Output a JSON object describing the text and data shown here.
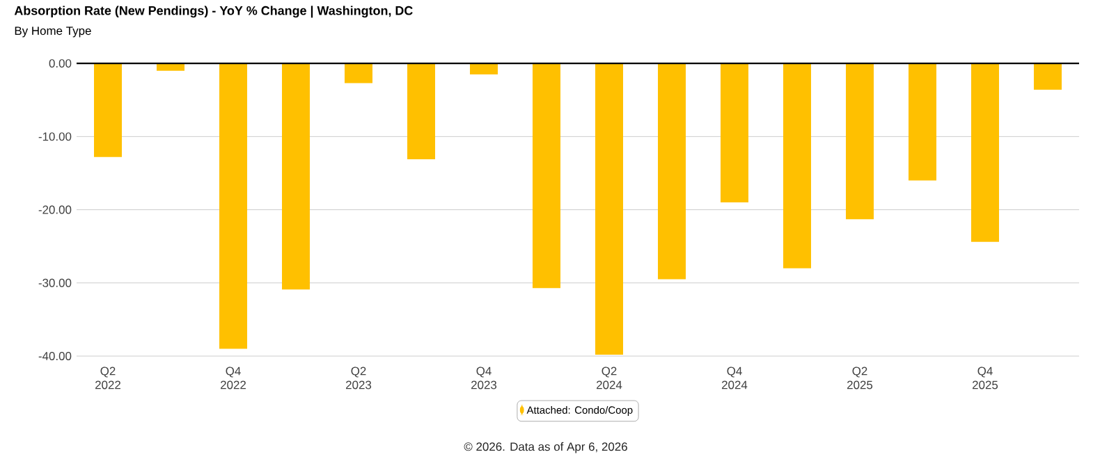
{
  "chart_data": {
    "type": "bar",
    "title": "Absorption Rate (New Pendings) - YoY % Change | Washington, DC",
    "subtitle": "By Home Type",
    "categories": [
      "Q2 2022",
      null,
      "Q4 2022",
      null,
      "Q2 2023",
      null,
      "Q4 2023",
      null,
      "Q2 2024",
      null,
      "Q4 2024",
      null,
      "Q2 2025",
      null,
      "Q4 2025",
      null
    ],
    "series": [
      {
        "name": "Attached: Condo/Coop",
        "color": "#ffc000",
        "values": [
          -12.8,
          -1.0,
          -39.0,
          -30.9,
          -2.7,
          -13.1,
          -1.5,
          -30.7,
          -39.8,
          -29.5,
          -19.0,
          -28.0,
          -21.3,
          -16.0,
          -24.4,
          -3.6
        ]
      }
    ],
    "ylim": [
      -40,
      0.3
    ],
    "yticks": [
      {
        "value": 0,
        "label": "0.00"
      },
      {
        "value": -10,
        "label": "-10.00"
      },
      {
        "value": -20,
        "label": "-20.00"
      },
      {
        "value": -30,
        "label": "-30.00"
      },
      {
        "value": -40,
        "label": "-40.00"
      }
    ],
    "ref_lines": [
      {
        "axis": "y",
        "value": 0,
        "color": "#000000"
      }
    ],
    "grid": "y",
    "legend": "bottom",
    "annotations": [
      "© 2026. Data as of Apr 6, 2026"
    ]
  }
}
